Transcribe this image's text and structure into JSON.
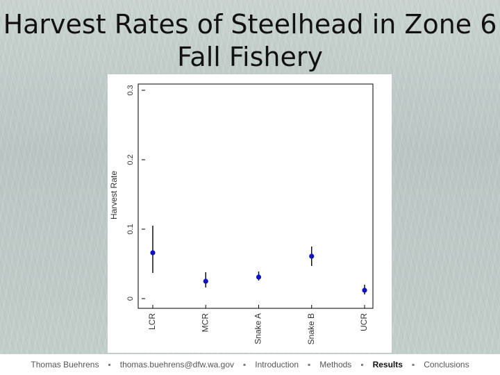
{
  "slide": {
    "title_line1": "Harvest Rates of Steelhead in Zone 6",
    "title_line2": "Fall Fishery"
  },
  "chart_data": {
    "type": "scatter",
    "subtype": "point-with-error-bars",
    "title": "",
    "ylabel": "Harvest Rate",
    "xlabel": "",
    "ylim": [
      0,
      0.3
    ],
    "yticks": [
      "0",
      "0.1",
      "0.2",
      "0.3"
    ],
    "categories": [
      "LCR",
      "MCR",
      "Snake A",
      "Snake B",
      "UCR"
    ],
    "values": [
      0.066,
      0.025,
      0.031,
      0.061,
      0.012
    ],
    "lower": [
      0.037,
      0.016,
      0.026,
      0.047,
      0.006
    ],
    "upper": [
      0.105,
      0.038,
      0.039,
      0.075,
      0.02
    ],
    "point_color": "#1010c8",
    "grid": false,
    "label_orientation": "vertical"
  },
  "footer": {
    "items": [
      {
        "label": "Thomas Buehrens",
        "active": false
      },
      {
        "label": "thomas.buehrens@dfw.wa.gov",
        "active": false
      },
      {
        "label": "Introduction",
        "active": false
      },
      {
        "label": "Methods",
        "active": false
      },
      {
        "label": "Results",
        "active": true
      },
      {
        "label": "Conclusions",
        "active": false
      }
    ],
    "separator": "▪"
  }
}
